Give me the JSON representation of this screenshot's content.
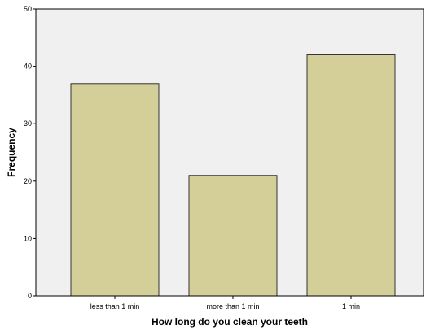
{
  "chart_data": {
    "type": "bar",
    "categories": [
      "less than 1 min",
      "more than 1 min",
      "1 min"
    ],
    "values": [
      37,
      21,
      42
    ],
    "title": "",
    "xlabel": "How long do you clean your teeth",
    "ylabel": "Frequency",
    "ylim": [
      0,
      50
    ],
    "yticks": [
      "0",
      "10",
      "20",
      "30",
      "40",
      "50"
    ],
    "grid": false,
    "legend": "none",
    "colors": {
      "plot_background": "#f0f0f0",
      "bar_fill": "#d4cf98",
      "bar_stroke": "#333333",
      "axis": "#000000"
    }
  }
}
